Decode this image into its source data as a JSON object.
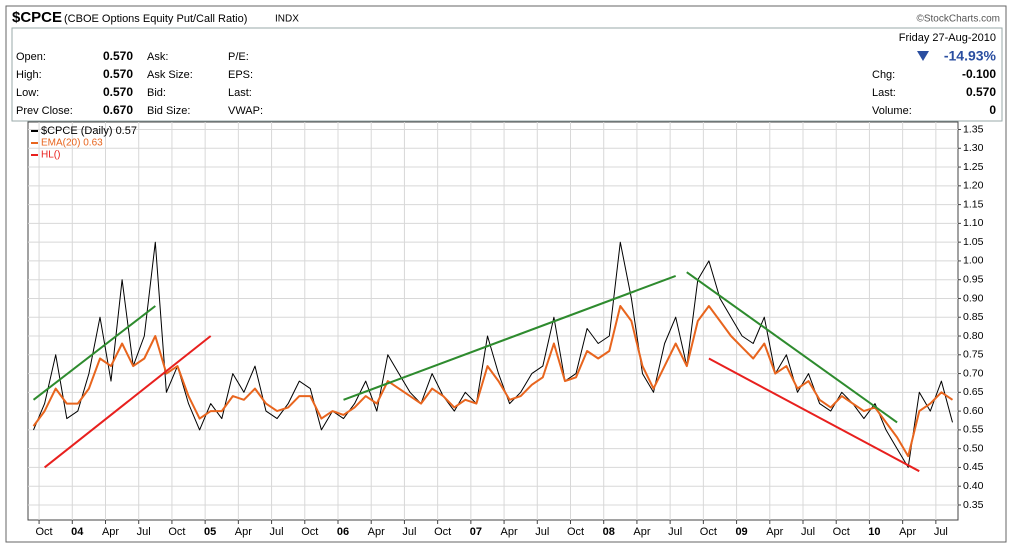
{
  "header": {
    "title": "$CPCE",
    "subtitle": "(CBOE Options Equity Put/Call Ratio)",
    "exchange": "INDX",
    "credit": "©StockCharts.com",
    "date": "Friday  27-Aug-2010",
    "change_pct": "-14.93%",
    "left": [
      [
        "Open:",
        "0.570"
      ],
      [
        "High:",
        "0.570"
      ],
      [
        "Low:",
        "0.570"
      ],
      [
        "Prev Close:",
        "0.670"
      ]
    ],
    "mid": [
      "Ask:",
      "Ask Size:",
      "Bid:",
      "Bid Size:"
    ],
    "mid2": [
      "P/E:",
      "EPS:",
      "Last:",
      "VWAP:"
    ],
    "right": [
      [
        "Chg:",
        "-0.100"
      ],
      [
        "Last:",
        "0.570"
      ],
      [
        "Volume:",
        "0"
      ]
    ]
  },
  "chart_data": {
    "type": "line",
    "xlim": [
      "2003-09",
      "2010-09"
    ],
    "x": [
      "2003-09",
      "2003-10",
      "2003-11",
      "2003-12",
      "2004-01",
      "2004-02",
      "2004-03",
      "2004-04",
      "2004-05",
      "2004-06",
      "2004-07",
      "2004-08",
      "2004-09",
      "2004-10",
      "2004-11",
      "2004-12",
      "2005-01",
      "2005-02",
      "2005-03",
      "2005-04",
      "2005-05",
      "2005-06",
      "2005-07",
      "2005-08",
      "2005-09",
      "2005-10",
      "2005-11",
      "2005-12",
      "2006-01",
      "2006-02",
      "2006-03",
      "2006-04",
      "2006-05",
      "2006-06",
      "2006-07",
      "2006-08",
      "2006-09",
      "2006-10",
      "2006-11",
      "2006-12",
      "2007-01",
      "2007-02",
      "2007-03",
      "2007-04",
      "2007-05",
      "2007-06",
      "2007-07",
      "2007-08",
      "2007-09",
      "2007-10",
      "2007-11",
      "2007-12",
      "2008-01",
      "2008-02",
      "2008-03",
      "2008-04",
      "2008-05",
      "2008-06",
      "2008-07",
      "2008-08",
      "2008-09",
      "2008-10",
      "2008-11",
      "2008-12",
      "2009-01",
      "2009-02",
      "2009-03",
      "2009-04",
      "2009-05",
      "2009-06",
      "2009-07",
      "2009-08",
      "2009-09",
      "2009-10",
      "2009-11",
      "2009-12",
      "2010-01",
      "2010-02",
      "2010-03",
      "2010-04",
      "2010-05",
      "2010-06",
      "2010-07",
      "2010-08"
    ],
    "series": [
      {
        "name": "$CPCE (Daily) 0.57",
        "color": "#000000",
        "width": 1,
        "values": [
          0.55,
          0.62,
          0.75,
          0.58,
          0.6,
          0.7,
          0.85,
          0.68,
          0.95,
          0.72,
          0.8,
          1.05,
          0.65,
          0.72,
          0.62,
          0.55,
          0.62,
          0.58,
          0.7,
          0.65,
          0.72,
          0.6,
          0.58,
          0.62,
          0.68,
          0.66,
          0.55,
          0.6,
          0.58,
          0.62,
          0.68,
          0.6,
          0.75,
          0.7,
          0.65,
          0.62,
          0.7,
          0.64,
          0.6,
          0.65,
          0.62,
          0.8,
          0.7,
          0.62,
          0.65,
          0.7,
          0.72,
          0.85,
          0.68,
          0.7,
          0.82,
          0.78,
          0.8,
          1.05,
          0.9,
          0.7,
          0.65,
          0.78,
          0.85,
          0.72,
          0.95,
          1.0,
          0.9,
          0.85,
          0.8,
          0.78,
          0.85,
          0.7,
          0.75,
          0.65,
          0.7,
          0.62,
          0.6,
          0.65,
          0.62,
          0.58,
          0.62,
          0.55,
          0.5,
          0.45,
          0.65,
          0.6,
          0.68,
          0.57
        ]
      },
      {
        "name": "EMA(20) 0.63",
        "color": "#e8651e",
        "width": 2,
        "values": [
          0.56,
          0.6,
          0.66,
          0.62,
          0.62,
          0.66,
          0.74,
          0.72,
          0.78,
          0.72,
          0.74,
          0.8,
          0.7,
          0.72,
          0.64,
          0.58,
          0.6,
          0.6,
          0.64,
          0.63,
          0.66,
          0.62,
          0.6,
          0.61,
          0.64,
          0.64,
          0.58,
          0.6,
          0.59,
          0.61,
          0.64,
          0.62,
          0.68,
          0.66,
          0.64,
          0.62,
          0.66,
          0.64,
          0.61,
          0.63,
          0.62,
          0.72,
          0.68,
          0.63,
          0.64,
          0.67,
          0.69,
          0.78,
          0.68,
          0.69,
          0.76,
          0.74,
          0.76,
          0.88,
          0.84,
          0.72,
          0.66,
          0.72,
          0.78,
          0.72,
          0.84,
          0.88,
          0.84,
          0.8,
          0.77,
          0.74,
          0.78,
          0.7,
          0.72,
          0.66,
          0.68,
          0.63,
          0.61,
          0.64,
          0.62,
          0.6,
          0.61,
          0.57,
          0.53,
          0.48,
          0.6,
          0.62,
          0.65,
          0.63
        ]
      }
    ],
    "hl": {
      "name": "HL()",
      "color": "#e8201e",
      "segments": [
        {
          "color": "#2e8b2e",
          "x": [
            "2003-09",
            "2004-08"
          ],
          "values": [
            0.63,
            0.88
          ]
        },
        {
          "color": "#e8201e",
          "x": [
            "2003-10",
            "2005-01"
          ],
          "values": [
            0.45,
            0.8
          ]
        },
        {
          "color": "#2e8b2e",
          "x": [
            "2006-01",
            "2008-07"
          ],
          "values": [
            0.63,
            0.96
          ]
        },
        {
          "color": "#2e8b2e",
          "x": [
            "2008-08",
            "2010-03"
          ],
          "values": [
            0.97,
            0.57
          ]
        },
        {
          "color": "#e8201e",
          "x": [
            "2008-10",
            "2010-05"
          ],
          "values": [
            0.74,
            0.44
          ]
        }
      ]
    },
    "ylim": [
      0.31,
      1.37
    ],
    "yticks": [
      {
        "value": 0.35,
        "label": "0.35"
      },
      {
        "value": 0.4,
        "label": "0.40"
      },
      {
        "value": 0.45,
        "label": "0.45"
      },
      {
        "value": 0.5,
        "label": "0.50"
      },
      {
        "value": 0.55,
        "label": "0.55"
      },
      {
        "value": 0.6,
        "label": "0.60"
      },
      {
        "value": 0.65,
        "label": "0.65"
      },
      {
        "value": 0.7,
        "label": "0.70"
      },
      {
        "value": 0.75,
        "label": "0.75"
      },
      {
        "value": 0.8,
        "label": "0.80"
      },
      {
        "value": 0.85,
        "label": "0.85"
      },
      {
        "value": 0.9,
        "label": "0.90"
      },
      {
        "value": 0.95,
        "label": "0.95"
      },
      {
        "value": 1.0,
        "label": "1.00"
      },
      {
        "value": 1.05,
        "label": "1.05"
      },
      {
        "value": 1.1,
        "label": "1.10"
      },
      {
        "value": 1.15,
        "label": "1.15"
      },
      {
        "value": 1.2,
        "label": "1.20"
      },
      {
        "value": 1.25,
        "label": "1.25"
      },
      {
        "value": 1.3,
        "label": "1.30"
      },
      {
        "value": 1.35,
        "label": "1.35"
      }
    ],
    "xticks": [
      {
        "value": "2003-10",
        "label": "Oct"
      },
      {
        "value": "2004-01",
        "label": "04"
      },
      {
        "value": "2004-04",
        "label": "Apr"
      },
      {
        "value": "2004-07",
        "label": "Jul"
      },
      {
        "value": "2004-10",
        "label": "Oct"
      },
      {
        "value": "2005-01",
        "label": "05"
      },
      {
        "value": "2005-04",
        "label": "Apr"
      },
      {
        "value": "2005-07",
        "label": "Jul"
      },
      {
        "value": "2005-10",
        "label": "Oct"
      },
      {
        "value": "2006-01",
        "label": "06"
      },
      {
        "value": "2006-04",
        "label": "Apr"
      },
      {
        "value": "2006-07",
        "label": "Jul"
      },
      {
        "value": "2006-10",
        "label": "Oct"
      },
      {
        "value": "2007-01",
        "label": "07"
      },
      {
        "value": "2007-04",
        "label": "Apr"
      },
      {
        "value": "2007-07",
        "label": "Jul"
      },
      {
        "value": "2007-10",
        "label": "Oct"
      },
      {
        "value": "2008-01",
        "label": "08"
      },
      {
        "value": "2008-04",
        "label": "Apr"
      },
      {
        "value": "2008-07",
        "label": "Jul"
      },
      {
        "value": "2008-10",
        "label": "Oct"
      },
      {
        "value": "2009-01",
        "label": "09"
      },
      {
        "value": "2009-04",
        "label": "Apr"
      },
      {
        "value": "2009-07",
        "label": "Jul"
      },
      {
        "value": "2009-10",
        "label": "Oct"
      },
      {
        "value": "2010-01",
        "label": "10"
      },
      {
        "value": "2010-04",
        "label": "Apr"
      },
      {
        "value": "2010-07",
        "label": "Jul"
      }
    ],
    "grid": true
  }
}
